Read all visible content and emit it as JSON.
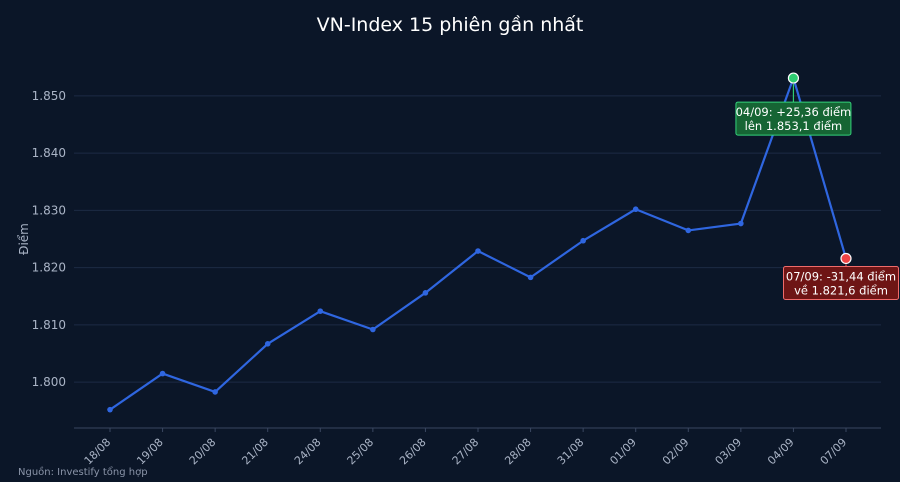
{
  "chart_data": {
    "type": "line",
    "title": "VN-Index 15 phiên gần nhất",
    "ylabel": "Điểm",
    "xlabel": "",
    "categories": [
      "18/08",
      "19/08",
      "20/08",
      "21/08",
      "24/08",
      "25/08",
      "26/08",
      "27/08",
      "28/08",
      "31/08",
      "01/09",
      "02/09",
      "03/09",
      "04/09",
      "07/09"
    ],
    "series": [
      {
        "values": [
          1795.2,
          1801.5,
          1798.3,
          1806.7,
          1812.4,
          1809.2,
          1815.6,
          1822.9,
          1818.3,
          1824.7,
          1830.2,
          1826.5,
          1827.7,
          1853.1,
          1821.6
        ]
      }
    ],
    "ylim": [
      1792,
      1858
    ],
    "yticks": [
      1800,
      1810,
      1820,
      1830,
      1840,
      1850
    ],
    "ytick_labels": [
      "1.800",
      "1.810",
      "1.820",
      "1.830",
      "1.840",
      "1.850"
    ],
    "grid": true,
    "annotations": [
      {
        "category": "04/09",
        "value": 1853.1,
        "line1": "04/09: +25,36 điểm",
        "line2": "lên 1.853,1 điểm",
        "kind": "up"
      },
      {
        "category": "07/09",
        "value": 1821.6,
        "line1": "07/09: -31,44 điểm",
        "line2": "về 1.821,6 điểm",
        "kind": "down"
      }
    ],
    "source": "Nguồn: Investify tổng hợp"
  },
  "colors": {
    "background": "#0b1628",
    "line": "#2f66e0",
    "grid": "#1d2b44",
    "up_marker": "#2ecc71",
    "up_box_fill": "#166534",
    "up_box_border": "#34d27a",
    "down_marker": "#ef4444",
    "down_box_fill": "#6e1515",
    "down_box_border": "#ef6b6b"
  }
}
